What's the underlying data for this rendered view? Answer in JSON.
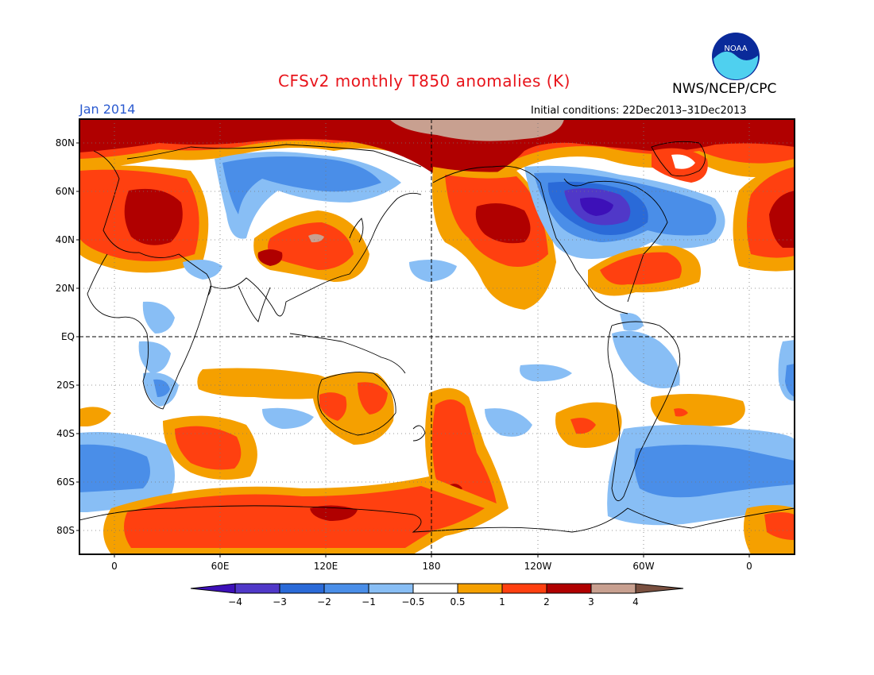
{
  "header": {
    "title": "CFSv2 monthly T850 anomalies (K)",
    "agency": "NWS/NCEP/CPC",
    "period": "Jan 2014",
    "initial_conditions": "Initial conditions: 22Dec2013–31Dec2013",
    "logo_text": "NOAA"
  },
  "map": {
    "lat_labels": [
      "80N",
      "60N",
      "40N",
      "20N",
      "EQ",
      "20S",
      "40S",
      "60S",
      "80S"
    ],
    "lon_labels": [
      "0",
      "60E",
      "120E",
      "180",
      "120W",
      "60W",
      "0"
    ],
    "grid": "dotted",
    "reference_lines": [
      "EQ",
      "180"
    ]
  },
  "colorbar": {
    "ticks": [
      "−4",
      "−3",
      "−2",
      "−1",
      "−0.5",
      "0.5",
      "1",
      "2",
      "3",
      "4"
    ],
    "colors": [
      "#3d10b8",
      "#5038c8",
      "#2a6ad8",
      "#4a8ee8",
      "#88bef5",
      "#ffffff",
      "#f5a000",
      "#ff4010",
      "#b00000",
      "#c8a090",
      "#7a5040"
    ]
  }
}
